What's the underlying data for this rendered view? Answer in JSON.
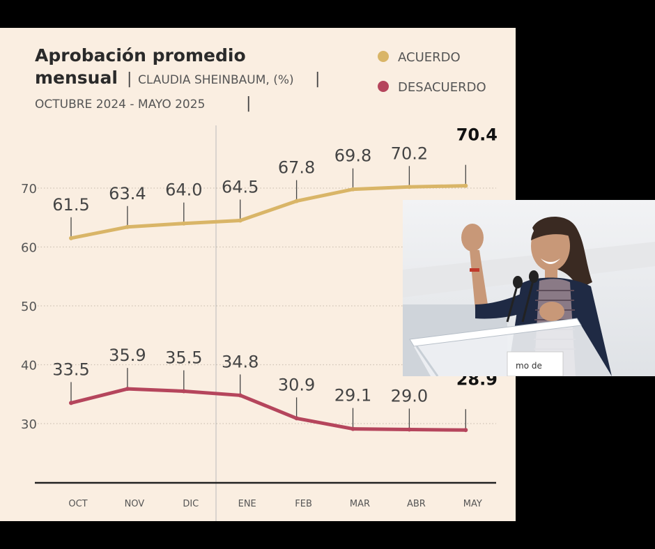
{
  "title_line1": "Aprobación promedio",
  "title_line2": "mensual",
  "subtitle": "CLAUDIA SHEINBAUM, (%)",
  "period": "OCTUBRE 2024 - MAYO 2025",
  "chart_data": {
    "type": "line",
    "categories": [
      "OCT",
      "NOV",
      "DIC",
      "ENE",
      "FEB",
      "MAR",
      "ABR",
      "MAY"
    ],
    "series": [
      {
        "name": "ACUERDO",
        "values": [
          61.5,
          63.4,
          64.0,
          64.5,
          67.8,
          69.8,
          70.2,
          70.4
        ],
        "color": "#d9b567"
      },
      {
        "name": "DESACUERDO",
        "values": [
          33.5,
          35.9,
          35.5,
          34.8,
          30.9,
          29.1,
          29.0,
          28.9
        ],
        "color": "#b5455c"
      }
    ],
    "value_labels": {
      "ACUERDO": [
        "61.5",
        "63.4",
        "64.0",
        "64.5",
        "67.8",
        "69.8",
        "70.2",
        "70.4"
      ],
      "DESACUERDO": [
        "33.5",
        "35.9",
        "35.5",
        "34.8",
        "30.9",
        "29.1",
        "29.0",
        "28.9"
      ]
    },
    "yticks": [
      "70",
      "60",
      "50",
      "40",
      "30"
    ],
    "ylim": [
      20,
      80
    ],
    "grid": "dotted horizontal at ticks",
    "legend": "top-right",
    "divider_before": "ENE"
  },
  "photo": {
    "podium_text": "mo de",
    "colors": {
      "sky": "#e9ebee",
      "hair": "#3a2a22",
      "skin": "#c89878",
      "jacket": "#1f2a44",
      "stripes": "#8a7a86"
    }
  }
}
